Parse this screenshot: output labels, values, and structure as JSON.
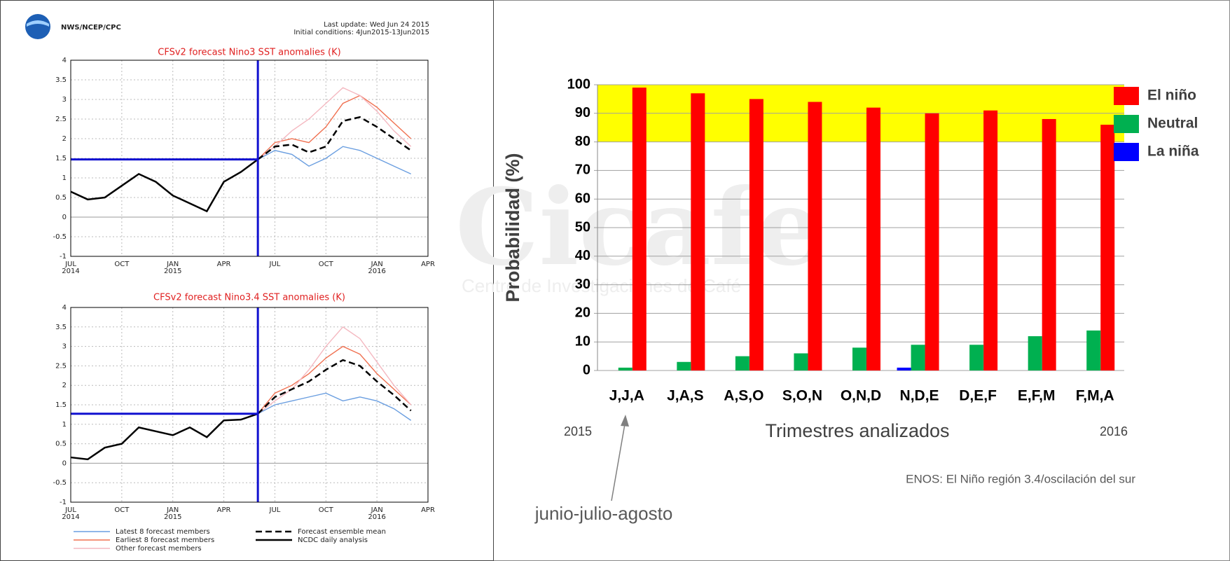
{
  "header": {
    "agency": "NWS/NCEP/CPC",
    "last_update": "Last update: Wed Jun 24 2015",
    "initial_conditions": "Initial conditions: 4Jun2015-13Jun2015"
  },
  "chart_data": [
    {
      "type": "line",
      "title": "CFSv2 forecast Nino3 SST anomalies (K)",
      "xlim": [
        0,
        21
      ],
      "ylim": [
        -1,
        4
      ],
      "xticks": [
        {
          "value": 0,
          "label": "JUL",
          "sublabel": "2014"
        },
        {
          "value": 3,
          "label": "OCT"
        },
        {
          "value": 6,
          "label": "JAN",
          "sublabel": "2015"
        },
        {
          "value": 9,
          "label": "APR"
        },
        {
          "value": 12,
          "label": "JUL"
        },
        {
          "value": 15,
          "label": "OCT"
        },
        {
          "value": 18,
          "label": "JAN",
          "sublabel": "2016"
        },
        {
          "value": 21,
          "label": "APR"
        }
      ],
      "yticks": [
        -1,
        -0.5,
        0,
        0.5,
        1,
        1.5,
        2,
        2.5,
        3,
        3.5,
        4
      ],
      "grid": true,
      "reference_lines": {
        "color": "#1010d0",
        "x": 11,
        "y": 1.47
      },
      "series": [
        {
          "color": "#6a9ee0",
          "x": [
            11,
            12,
            13,
            14,
            15,
            16,
            17,
            18,
            19,
            20
          ],
          "values": [
            1.47,
            1.7,
            1.6,
            1.3,
            1.5,
            1.8,
            1.7,
            1.5,
            1.3,
            1.1
          ]
        },
        {
          "color": "#f07050",
          "x": [
            11,
            12,
            13,
            14,
            15,
            16,
            17,
            18,
            19,
            20
          ],
          "values": [
            1.47,
            1.9,
            2.0,
            1.9,
            2.3,
            2.9,
            3.1,
            2.8,
            2.4,
            2.0
          ]
        },
        {
          "color": "#f4b8c0",
          "x": [
            11,
            12,
            13,
            14,
            15,
            16,
            17,
            18,
            19,
            20
          ],
          "values": [
            1.47,
            1.8,
            2.2,
            2.5,
            2.9,
            3.3,
            3.1,
            2.7,
            2.2,
            1.8
          ]
        },
        {
          "color": "#000000",
          "dash": true,
          "x": [
            11,
            12,
            13,
            14,
            15,
            16,
            17,
            18,
            19,
            20
          ],
          "values": [
            1.47,
            1.8,
            1.85,
            1.65,
            1.8,
            2.45,
            2.55,
            2.3,
            2.0,
            1.7
          ]
        },
        {
          "color": "#000000",
          "x": [
            0,
            1,
            2,
            3,
            4,
            5,
            6,
            7,
            8,
            9,
            10,
            11
          ],
          "values": [
            0.65,
            0.45,
            0.5,
            0.8,
            1.1,
            0.9,
            0.55,
            0.35,
            0.15,
            0.9,
            1.15,
            1.47
          ]
        }
      ]
    },
    {
      "type": "line",
      "title": "CFSv2 forecast Nino3.4 SST anomalies (K)",
      "xlim": [
        0,
        21
      ],
      "ylim": [
        -1,
        4
      ],
      "xticks": [
        {
          "value": 0,
          "label": "JUL",
          "sublabel": "2014"
        },
        {
          "value": 3,
          "label": "OCT"
        },
        {
          "value": 6,
          "label": "JAN",
          "sublabel": "2015"
        },
        {
          "value": 9,
          "label": "APR"
        },
        {
          "value": 12,
          "label": "JUL"
        },
        {
          "value": 15,
          "label": "OCT"
        },
        {
          "value": 18,
          "label": "JAN",
          "sublabel": "2016"
        },
        {
          "value": 21,
          "label": "APR"
        }
      ],
      "yticks": [
        -1,
        -0.5,
        0,
        0.5,
        1,
        1.5,
        2,
        2.5,
        3,
        3.5,
        4
      ],
      "grid": true,
      "reference_lines": {
        "color": "#1010d0",
        "x": 11,
        "y": 1.27
      },
      "series": [
        {
          "name": "Latest 8 forecast members",
          "color": "#6a9ee0",
          "x": [
            11,
            12,
            13,
            14,
            15,
            16,
            17,
            18,
            19,
            20
          ],
          "values": [
            1.27,
            1.5,
            1.6,
            1.7,
            1.8,
            1.6,
            1.7,
            1.6,
            1.4,
            1.1
          ]
        },
        {
          "name": "Earliest 8 forecast members",
          "color": "#f07050",
          "x": [
            11,
            12,
            13,
            14,
            15,
            16,
            17,
            18,
            19,
            20
          ],
          "values": [
            1.27,
            1.8,
            2.0,
            2.3,
            2.7,
            3.0,
            2.8,
            2.3,
            1.9,
            1.5
          ]
        },
        {
          "name": "Other forecast members",
          "color": "#f4b8c0",
          "x": [
            11,
            12,
            13,
            14,
            15,
            16,
            17,
            18,
            19,
            20
          ],
          "values": [
            1.27,
            1.6,
            1.9,
            2.4,
            3.0,
            3.5,
            3.2,
            2.6,
            2.0,
            1.5
          ]
        },
        {
          "name": "Forecast ensemble mean",
          "color": "#000000",
          "dash": true,
          "x": [
            11,
            12,
            13,
            14,
            15,
            16,
            17,
            18,
            19,
            20
          ],
          "values": [
            1.27,
            1.7,
            1.9,
            2.1,
            2.4,
            2.65,
            2.5,
            2.1,
            1.75,
            1.35
          ]
        },
        {
          "name": "NCDC daily analysis",
          "color": "#000000",
          "x": [
            0,
            1,
            2,
            3,
            4,
            5,
            6,
            7,
            8,
            9,
            10,
            11
          ],
          "values": [
            0.15,
            0.1,
            0.4,
            0.5,
            0.92,
            0.82,
            0.72,
            0.92,
            0.67,
            1.1,
            1.12,
            1.27
          ]
        }
      ]
    },
    {
      "type": "bar",
      "ylabel": "Probabilidad (%)",
      "xlabel": "Trimestres analizados",
      "year_start": "2015",
      "year_end": "2016",
      "note": "ENOS: El Niño región 3.4/oscilación del sur",
      "callout": "junio-julio-agosto",
      "watermark": "Cicafe",
      "watermark_subtitle": "Centro de Investigaciones de Café",
      "categories": [
        "J,J,A",
        "J,A,S",
        "A,S,O",
        "S,O,N",
        "O,N,D",
        "N,D,E",
        "D,E,F",
        "E,F,M",
        "F,M,A"
      ],
      "ylim": [
        0,
        100
      ],
      "yticks": [
        0,
        10,
        20,
        30,
        40,
        50,
        60,
        70,
        80,
        90,
        100
      ],
      "grid": true,
      "highlight": {
        "from": 80,
        "to": 100,
        "color": "#ffff00"
      },
      "series": [
        {
          "name": "El niño",
          "color": "#ff0000",
          "values": [
            99,
            97,
            95,
            94,
            92,
            90,
            91,
            88,
            86
          ]
        },
        {
          "name": "Neutral",
          "color": "#00b050",
          "values": [
            1,
            3,
            5,
            6,
            8,
            9,
            9,
            12,
            14
          ]
        },
        {
          "name": "La niña",
          "color": "#0000ff",
          "values": [
            0,
            0,
            0,
            0,
            0,
            1,
            0,
            0,
            0
          ]
        }
      ]
    }
  ]
}
